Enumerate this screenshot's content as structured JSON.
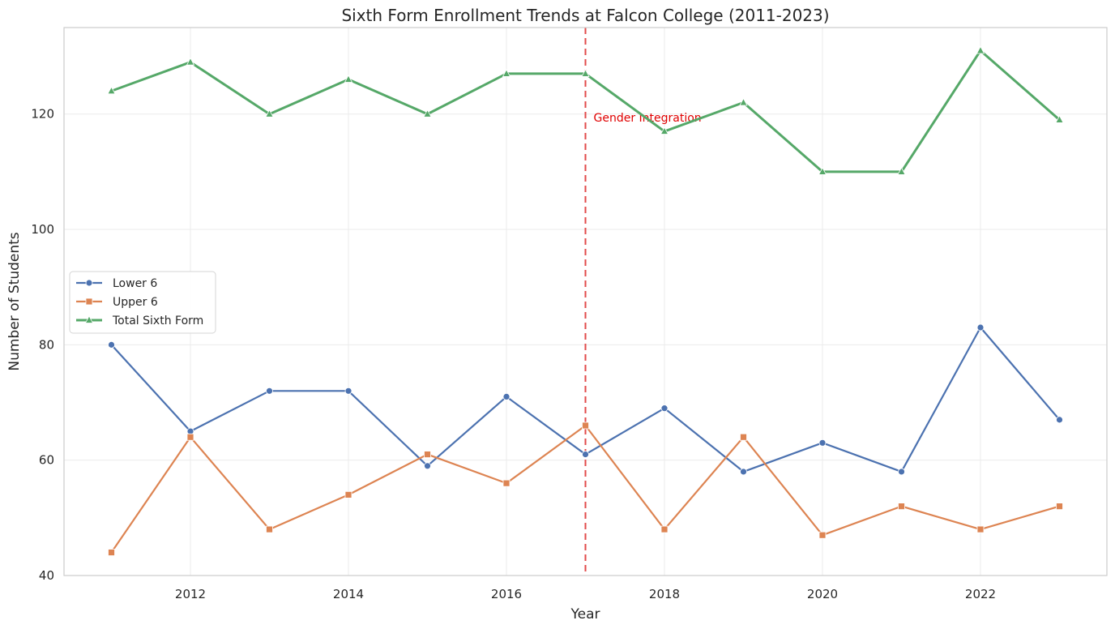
{
  "chart_data": {
    "type": "line",
    "title": "Sixth Form Enrollment Trends at Falcon College (2011-2023)",
    "xlabel": "Year",
    "ylabel": "Number of Students",
    "x": [
      2011,
      2012,
      2013,
      2014,
      2015,
      2016,
      2017,
      2018,
      2019,
      2020,
      2021,
      2022,
      2023
    ],
    "xlim": [
      2010.4,
      2023.6
    ],
    "ylim": [
      40,
      135
    ],
    "x_ticks": [
      2012,
      2014,
      2016,
      2018,
      2020,
      2022
    ],
    "y_ticks": [
      40,
      60,
      80,
      100,
      120
    ],
    "grid": true,
    "legend_position": "center-left",
    "series": [
      {
        "name": "Lower 6",
        "color": "#4c72b0",
        "marker": "circle",
        "values": [
          80,
          65,
          72,
          72,
          59,
          71,
          61,
          69,
          58,
          63,
          58,
          83,
          67
        ]
      },
      {
        "name": "Upper 6",
        "color": "#dd8452",
        "marker": "square",
        "values": [
          44,
          64,
          48,
          54,
          61,
          56,
          66,
          48,
          64,
          47,
          52,
          48,
          52
        ]
      },
      {
        "name": "Total Sixth Form",
        "color": "#55a868",
        "marker": "triangle",
        "values": [
          124,
          129,
          120,
          126,
          120,
          127,
          127,
          117,
          122,
          110,
          110,
          131,
          119
        ]
      }
    ],
    "annotations": [
      {
        "type": "vline",
        "x": 2017,
        "color": "#e24a4a",
        "style": "dashed",
        "label": "Gender Integration",
        "label_color": "#e00000",
        "label_y": 118
      }
    ]
  }
}
